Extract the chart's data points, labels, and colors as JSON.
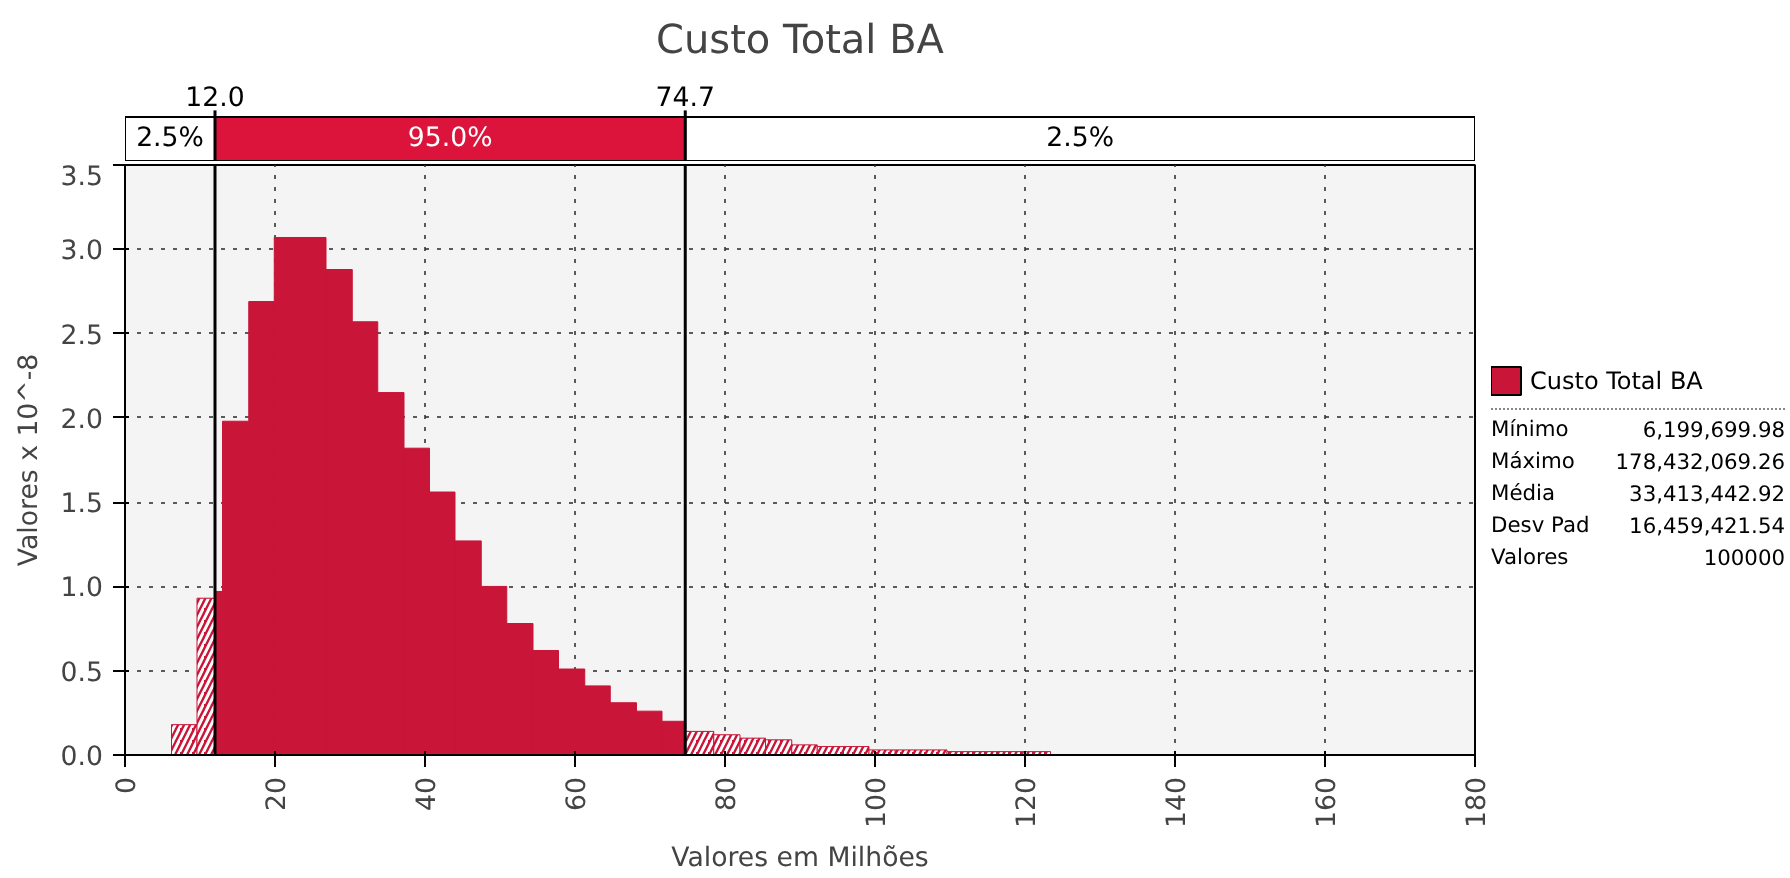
{
  "chart_data": {
    "type": "histogram",
    "title": "Custo Total BA",
    "xlabel": "Valores em Milhões",
    "ylabel": "Valores x 10^-8",
    "bins": [
      6.2,
      9.6,
      12.0,
      13.0,
      16.5,
      19.9,
      23.4,
      26.8,
      30.3,
      33.7,
      37.2,
      40.6,
      44.0,
      47.5,
      50.9,
      54.4,
      57.8,
      61.3,
      64.7,
      68.2,
      71.6,
      74.7,
      78.5,
      82.0,
      85.4,
      88.9,
      92.3,
      95.8,
      99.2,
      102.7,
      106.1,
      109.6,
      113.0,
      116.5,
      119.9,
      123.4
    ],
    "series": [
      {
        "name": "Custo Total BA",
        "color": "#c81538",
        "values": [
          0.18,
          0.93,
          0.97,
          1.98,
          2.69,
          3.07,
          3.07,
          2.88,
          2.57,
          2.15,
          1.82,
          1.56,
          1.27,
          1.0,
          0.78,
          0.62,
          0.51,
          0.41,
          0.31,
          0.26,
          0.2,
          0.14,
          0.12,
          0.1,
          0.09,
          0.06,
          0.05,
          0.05,
          0.03,
          0.03,
          0.03,
          0.02,
          0.02,
          0.02,
          0.02
        ]
      }
    ],
    "xlim": [
      0,
      180
    ],
    "ylim": [
      0,
      3.5
    ],
    "xticks": [
      0,
      20,
      40,
      60,
      80,
      100,
      120,
      140,
      160,
      180
    ],
    "yticks": [
      {
        "value": 0,
        "label": "0.0"
      },
      0.5,
      {
        "value": 1,
        "label": "1.0"
      },
      1.5,
      {
        "value": 2,
        "label": "2.0"
      },
      2.5,
      {
        "value": 3,
        "label": "3.0"
      },
      3.5
    ],
    "ref_lines": [
      {
        "axis": "x",
        "value": 12.0,
        "label": "12.0",
        "color": "#000000"
      },
      {
        "axis": "x",
        "value": 74.7,
        "label": "74.7",
        "color": "#000000"
      }
    ],
    "annotations": [
      "2.5%",
      "95.0%",
      "2.5%",
      "Mínimo",
      "6,199,699.98",
      "Máximo",
      "178,432,069.26",
      "Média",
      "33,413,442.92",
      "Desv Pad",
      "16,459,421.54",
      "Valores",
      "100000"
    ],
    "grid": true,
    "legend": "right"
  }
}
